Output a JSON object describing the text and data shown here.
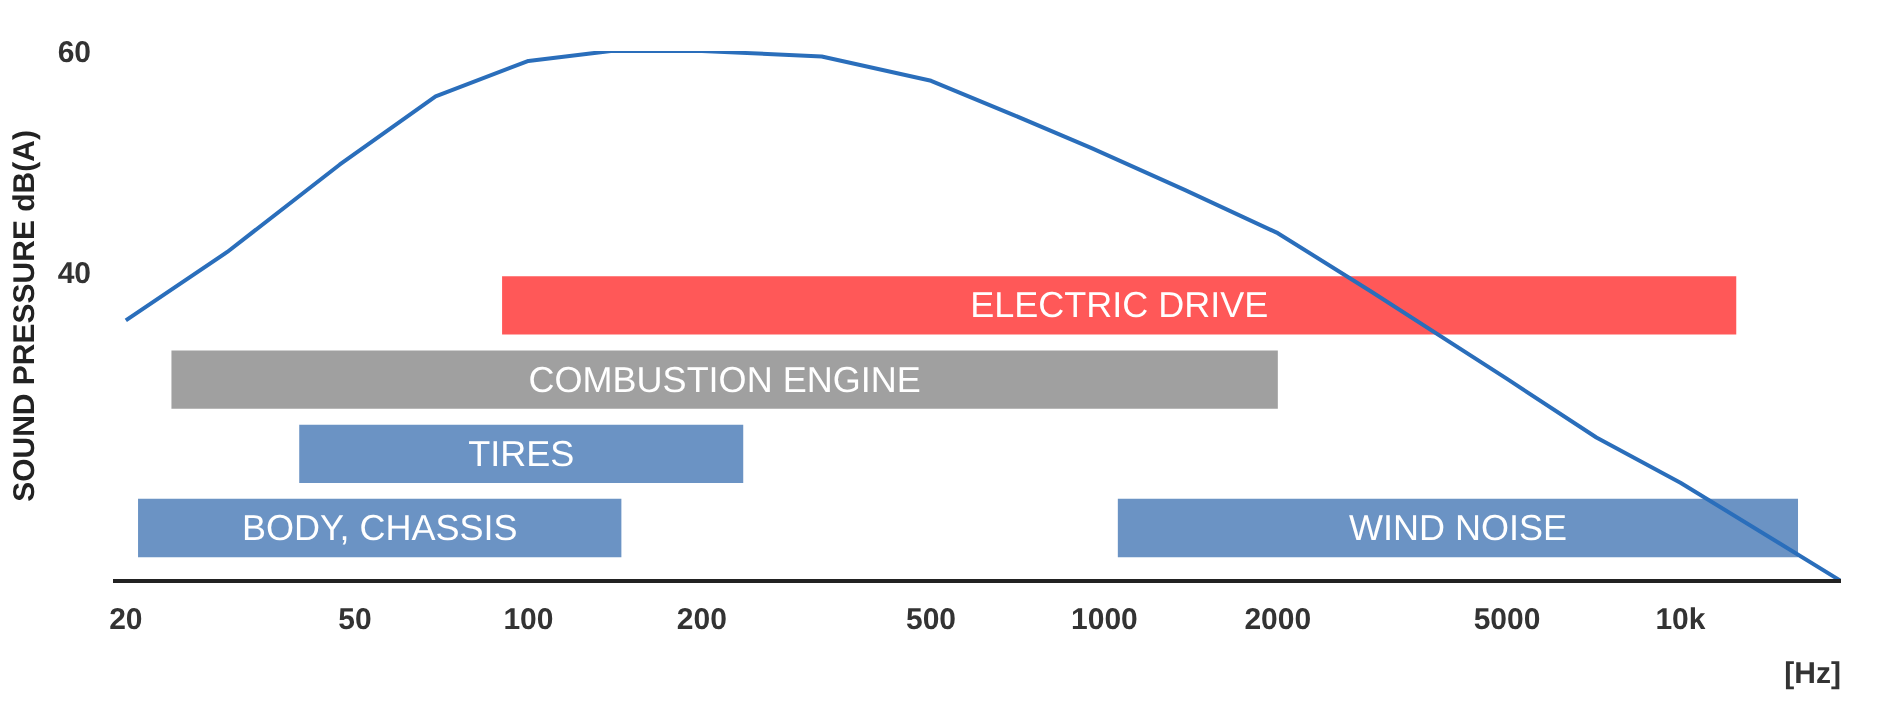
{
  "chart_data": {
    "type": "line",
    "ylabel": "SOUND PRESSURE dB(A)",
    "xlabel": "[Hz]",
    "log": "x",
    "x": [
      20,
      30,
      47,
      69,
      100,
      139,
      200,
      323,
      500,
      696,
      950,
      1381,
      2000,
      2908,
      5000,
      7147,
      10000,
      19000
    ],
    "series": [
      {
        "color": "#2a6ebb",
        "values": [
          35.6,
          41.8,
          49.7,
          55.9,
          59.1,
          60,
          60,
          59.5,
          57.3,
          54.2,
          51.2,
          47.4,
          43.5,
          38.2,
          30.3,
          25,
          20.9,
          12
        ]
      }
    ],
    "xlim": [
      19,
      19000
    ],
    "ylim": [
      12,
      60
    ],
    "xticks": [
      20,
      50,
      100,
      200,
      500,
      1000,
      2000,
      5000,
      {
        "value": 10000,
        "label": "10k"
      }
    ],
    "yticks": [
      40,
      60
    ],
    "grid": false,
    "bands": [
      {
        "axis": "x",
        "from": 21,
        "to": 145,
        "label": "BODY, CHASSIS",
        "color": "#3a6fb0"
      },
      {
        "axis": "x",
        "from": 1055,
        "to": 16000,
        "label": "WIND NOISE",
        "color": "#3a6fb0"
      },
      {
        "axis": "x",
        "from": 40,
        "to": 236,
        "label": "TIRES",
        "color": "#3a6fb0"
      },
      {
        "axis": "x",
        "from": 24,
        "to": 2000,
        "label": "COMBUSTION ENGINE",
        "color": "#808080"
      },
      {
        "axis": "x",
        "from": 90,
        "to": 12500,
        "label": "ELECTRIC DRIVE",
        "color": "#ff2020"
      }
    ]
  }
}
